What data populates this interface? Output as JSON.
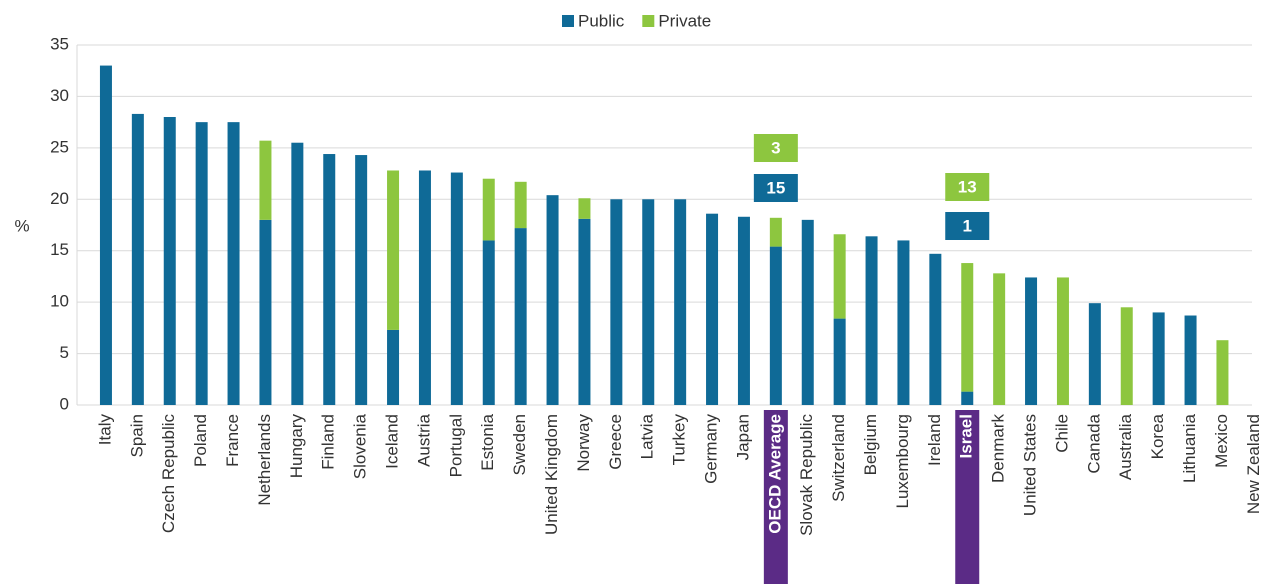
{
  "chart_data": {
    "type": "stacked_bar",
    "y_label": "%",
    "categories": [
      "Italy",
      "Spain",
      "Czech Republic",
      "Poland",
      "France",
      "Netherlands",
      "Hungary",
      "Finland",
      "Slovenia",
      "Iceland",
      "Austria",
      "Portugal",
      "Estonia",
      "Sweden",
      "United Kingdom",
      "Norway",
      "Greece",
      "Latvia",
      "Turkey",
      "Germany",
      "Japan",
      "OECD Average",
      "Slovak Republic",
      "Switzerland",
      "Belgium",
      "Luxembourg",
      "Ireland",
      "Israel",
      "Denmark",
      "United States",
      "Chile",
      "Canada",
      "Australia",
      "Korea",
      "Lithuania",
      "Mexico",
      "New Zealand"
    ],
    "series": [
      {
        "name": "Public",
        "color": "#0f6a97",
        "values": [
          33,
          28.3,
          28,
          27.5,
          27.5,
          18,
          25.5,
          24.4,
          24.3,
          7.3,
          22.8,
          22.6,
          16,
          17.2,
          20.4,
          18.1,
          20,
          20,
          20,
          18.6,
          18.3,
          15.4,
          18,
          8.4,
          16.4,
          16,
          14.7,
          1.3,
          0,
          12.4,
          0,
          9.9,
          0,
          9,
          8.7,
          0,
          null
        ],
        "value_labels": [
          null,
          null,
          null,
          null,
          null,
          null,
          null,
          null,
          null,
          null,
          null,
          null,
          null,
          null,
          null,
          null,
          null,
          null,
          null,
          null,
          null,
          "15",
          null,
          null,
          null,
          null,
          null,
          "1",
          null,
          null,
          null,
          null,
          null,
          null,
          null,
          null,
          null
        ]
      },
      {
        "name": "Private",
        "color": "#8dc63f",
        "values": [
          0,
          0,
          0,
          0,
          0,
          7.7,
          0,
          0,
          0,
          15.5,
          0,
          0,
          6,
          4.5,
          0,
          2,
          0,
          0,
          0,
          0,
          0,
          2.8,
          0,
          8.2,
          0,
          0,
          0,
          12.5,
          12.8,
          0,
          12.4,
          0,
          9.5,
          0,
          0,
          6.3,
          null
        ],
        "value_labels": [
          null,
          null,
          null,
          null,
          null,
          null,
          null,
          null,
          null,
          null,
          null,
          null,
          null,
          null,
          null,
          null,
          null,
          null,
          null,
          null,
          null,
          "3",
          null,
          null,
          null,
          null,
          null,
          "13",
          null,
          null,
          null,
          null,
          null,
          null,
          null,
          null,
          null
        ]
      }
    ],
    "highlight": [
      21,
      27
    ],
    "highlight_color": "#5b2b86",
    "ylim": [
      0,
      35
    ],
    "yticks": [
      0,
      5,
      10,
      15,
      20,
      25,
      30,
      35
    ],
    "grid": true,
    "legend": "top"
  }
}
